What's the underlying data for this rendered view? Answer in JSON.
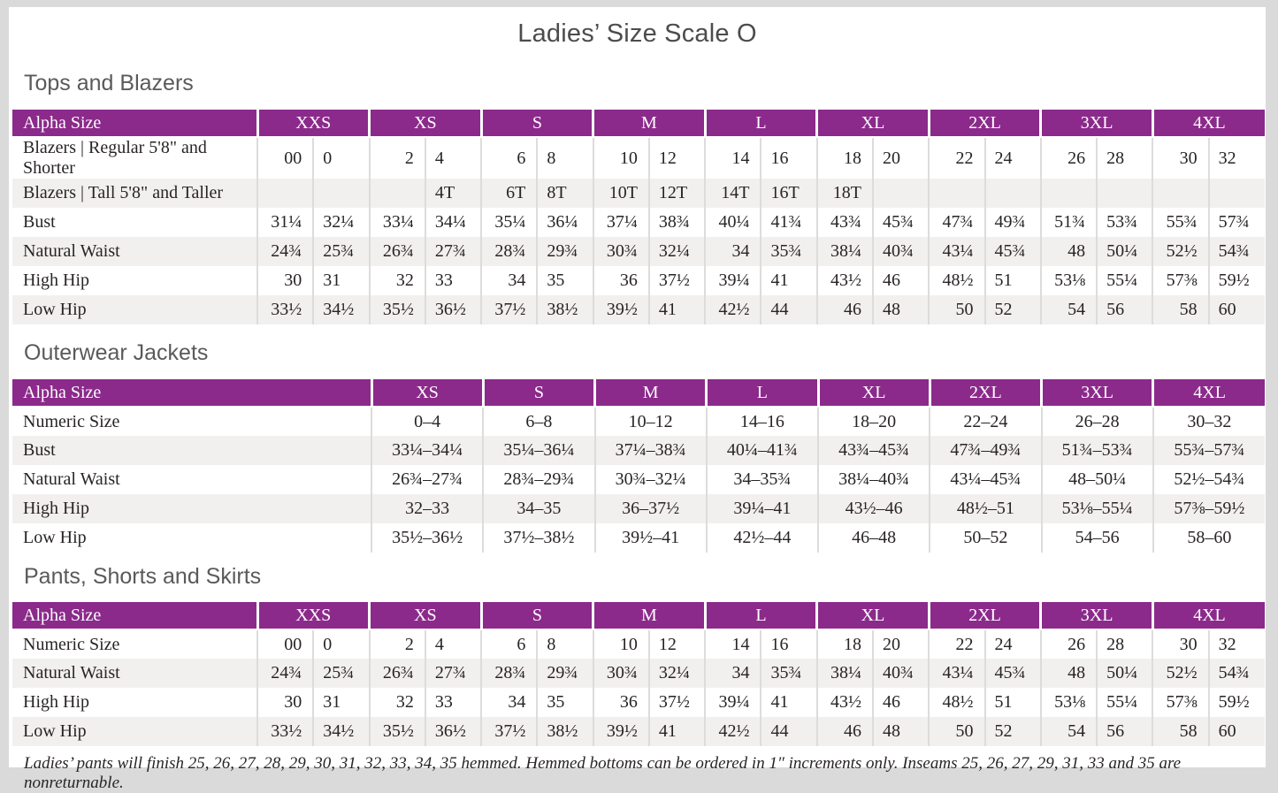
{
  "page": {
    "title": "Ladies’ Size Scale O",
    "footnote": "Ladies’ pants will finish 25, 26, 27, 28, 29, 30, 31, 32, 33, 34, 35 hemmed. Hemmed bottoms can be ordered in 1″ increments only. Inseams 25, 26, 27, 29, 31, 33 and 35 are nonreturnable."
  },
  "colors": {
    "header_purple": "#8b2a8b",
    "row_stripe": "#f2f0ef",
    "divider": "#dedcdb",
    "title_gray": "#4c4c4c",
    "heading_gray": "#5a5a5a",
    "page_background": "#ffffff",
    "outer_background": "#dadada"
  },
  "tables": [
    {
      "heading": "Tops and Blazers",
      "corner_label": "Alpha Size",
      "layout": "paired",
      "sizes": [
        "XXS",
        "XS",
        "S",
        "M",
        "L",
        "XL",
        "2XL",
        "3XL",
        "4XL"
      ],
      "rows": [
        {
          "label": "Blazers  |  Regular 5'8\" and Shorter",
          "values": [
            [
              "00",
              "0"
            ],
            [
              "2",
              "4"
            ],
            [
              "6",
              "8"
            ],
            [
              "10",
              "12"
            ],
            [
              "14",
              "16"
            ],
            [
              "18",
              "20"
            ],
            [
              "22",
              "24"
            ],
            [
              "26",
              "28"
            ],
            [
              "30",
              "32"
            ]
          ]
        },
        {
          "label": "Blazers  |  Tall 5'8\" and Taller",
          "values": [
            [
              "",
              ""
            ],
            [
              "",
              "4T"
            ],
            [
              "6T",
              "8T"
            ],
            [
              "10T",
              "12T"
            ],
            [
              "14T",
              "16T"
            ],
            [
              "18T",
              ""
            ],
            [
              "",
              ""
            ],
            [
              "",
              ""
            ],
            [
              "",
              ""
            ]
          ]
        },
        {
          "label": "Bust",
          "values": [
            [
              "31¼",
              "32¼"
            ],
            [
              "33¼",
              "34¼"
            ],
            [
              "35¼",
              "36¼"
            ],
            [
              "37¼",
              "38¾"
            ],
            [
              "40¼",
              "41¾"
            ],
            [
              "43¾",
              "45¾"
            ],
            [
              "47¾",
              "49¾"
            ],
            [
              "51¾",
              "53¾"
            ],
            [
              "55¾",
              "57¾"
            ]
          ]
        },
        {
          "label": "Natural Waist",
          "values": [
            [
              "24¾",
              "25¾"
            ],
            [
              "26¾",
              "27¾"
            ],
            [
              "28¾",
              "29¾"
            ],
            [
              "30¾",
              "32¼"
            ],
            [
              "34",
              "35¾"
            ],
            [
              "38¼",
              "40¾"
            ],
            [
              "43¼",
              "45¾"
            ],
            [
              "48",
              "50¼"
            ],
            [
              "52½",
              "54¾"
            ]
          ]
        },
        {
          "label": "High Hip",
          "values": [
            [
              "30",
              "31"
            ],
            [
              "32",
              "33"
            ],
            [
              "34",
              "35"
            ],
            [
              "36",
              "37½"
            ],
            [
              "39¼",
              "41"
            ],
            [
              "43½",
              "46"
            ],
            [
              "48½",
              "51"
            ],
            [
              "53⅛",
              "55¼"
            ],
            [
              "57⅜",
              "59½"
            ]
          ]
        },
        {
          "label": "Low Hip",
          "values": [
            [
              "33½",
              "34½"
            ],
            [
              "35½",
              "36½"
            ],
            [
              "37½",
              "38½"
            ],
            [
              "39½",
              "41"
            ],
            [
              "42½",
              "44"
            ],
            [
              "46",
              "48"
            ],
            [
              "50",
              "52"
            ],
            [
              "54",
              "56"
            ],
            [
              "58",
              "60"
            ]
          ]
        }
      ]
    },
    {
      "heading": "Outerwear Jackets",
      "corner_label": "Alpha Size",
      "layout": "single",
      "sizes": [
        "XS",
        "S",
        "M",
        "L",
        "XL",
        "2XL",
        "3XL",
        "4XL"
      ],
      "rows": [
        {
          "label": "Numeric Size",
          "values": [
            "0–4",
            "6–8",
            "10–12",
            "14–16",
            "18–20",
            "22–24",
            "26–28",
            "30–32"
          ]
        },
        {
          "label": "Bust",
          "values": [
            "33¼–34¼",
            "35¼–36¼",
            "37¼–38¾",
            "40¼–41¾",
            "43¾–45¾",
            "47¾–49¾",
            "51¾–53¾",
            "55¾–57¾"
          ]
        },
        {
          "label": "Natural Waist",
          "values": [
            "26¾–27¾",
            "28¾–29¾",
            "30¾–32¼",
            "34–35¾",
            "38¼–40¾",
            "43¼–45¾",
            "48–50¼",
            "52½–54¾"
          ]
        },
        {
          "label": "High Hip",
          "values": [
            "32–33",
            "34–35",
            "36–37½",
            "39¼–41",
            "43½–46",
            "48½–51",
            "53⅛–55¼",
            "57⅜–59½"
          ]
        },
        {
          "label": "Low Hip",
          "values": [
            "35½–36½",
            "37½–38½",
            "39½–41",
            "42½–44",
            "46–48",
            "50–52",
            "54–56",
            "58–60"
          ]
        }
      ]
    },
    {
      "heading": "Pants, Shorts and Skirts",
      "corner_label": "Alpha Size",
      "layout": "paired",
      "sizes": [
        "XXS",
        "XS",
        "S",
        "M",
        "L",
        "XL",
        "2XL",
        "3XL",
        "4XL"
      ],
      "rows": [
        {
          "label": "Numeric Size",
          "values": [
            [
              "00",
              "0"
            ],
            [
              "2",
              "4"
            ],
            [
              "6",
              "8"
            ],
            [
              "10",
              "12"
            ],
            [
              "14",
              "16"
            ],
            [
              "18",
              "20"
            ],
            [
              "22",
              "24"
            ],
            [
              "26",
              "28"
            ],
            [
              "30",
              "32"
            ]
          ]
        },
        {
          "label": "Natural Waist",
          "values": [
            [
              "24¾",
              "25¾"
            ],
            [
              "26¾",
              "27¾"
            ],
            [
              "28¾",
              "29¾"
            ],
            [
              "30¾",
              "32¼"
            ],
            [
              "34",
              "35¾"
            ],
            [
              "38¼",
              "40¾"
            ],
            [
              "43¼",
              "45¾"
            ],
            [
              "48",
              "50¼"
            ],
            [
              "52½",
              "54¾"
            ]
          ]
        },
        {
          "label": "High Hip",
          "values": [
            [
              "30",
              "31"
            ],
            [
              "32",
              "33"
            ],
            [
              "34",
              "35"
            ],
            [
              "36",
              "37½"
            ],
            [
              "39¼",
              "41"
            ],
            [
              "43½",
              "46"
            ],
            [
              "48½",
              "51"
            ],
            [
              "53⅛",
              "55¼"
            ],
            [
              "57⅜",
              "59½"
            ]
          ]
        },
        {
          "label": "Low Hip",
          "values": [
            [
              "33½",
              "34½"
            ],
            [
              "35½",
              "36½"
            ],
            [
              "37½",
              "38½"
            ],
            [
              "39½",
              "41"
            ],
            [
              "42½",
              "44"
            ],
            [
              "46",
              "48"
            ],
            [
              "50",
              "52"
            ],
            [
              "54",
              "56"
            ],
            [
              "58",
              "60"
            ]
          ]
        }
      ]
    }
  ]
}
